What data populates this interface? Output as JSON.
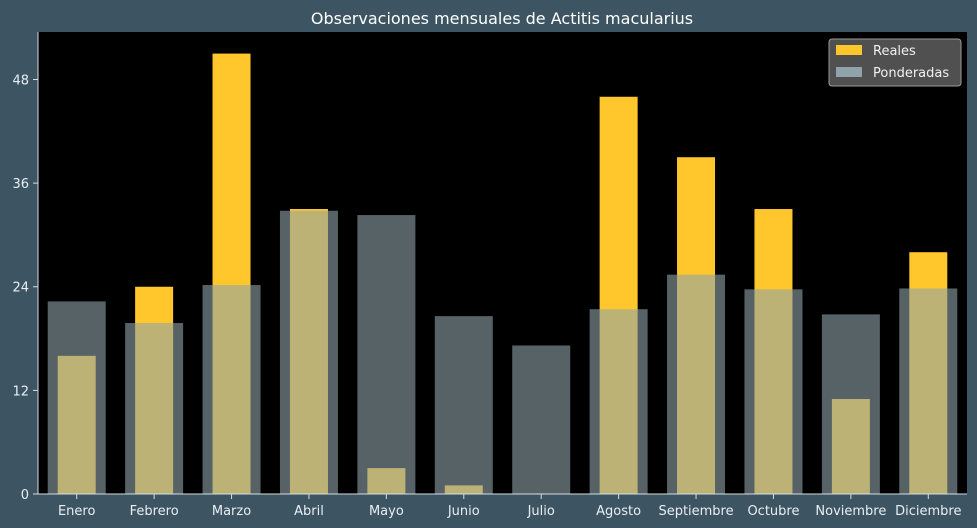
{
  "chart_data": {
    "type": "bar",
    "title": "Observaciones mensuales de Actitis macularius",
    "xlabel": "",
    "ylabel": "",
    "categories": [
      "Enero",
      "Febrero",
      "Marzo",
      "Abril",
      "Mayo",
      "Junio",
      "Julio",
      "Agosto",
      "Septiembre",
      "Octubre",
      "Noviembre",
      "Diciembre"
    ],
    "series": [
      {
        "name": "Reales",
        "color": "#ffc72c",
        "values": [
          16,
          24,
          51,
          33,
          3,
          1,
          0,
          46,
          39,
          33,
          11,
          28
        ]
      },
      {
        "name": "Ponderadas",
        "color": "#8fa3a9",
        "values": [
          22.3,
          19.8,
          24.2,
          32.8,
          32.3,
          20.6,
          17.2,
          21.4,
          25.4,
          23.7,
          20.8,
          23.8
        ]
      }
    ],
    "ylim": [
      0,
      53.5
    ],
    "yticks": [
      0,
      12,
      24,
      36,
      48
    ],
    "grid": false,
    "legend_position": "top-right",
    "plot_background": "#000000",
    "page_background": "#3d5463"
  }
}
